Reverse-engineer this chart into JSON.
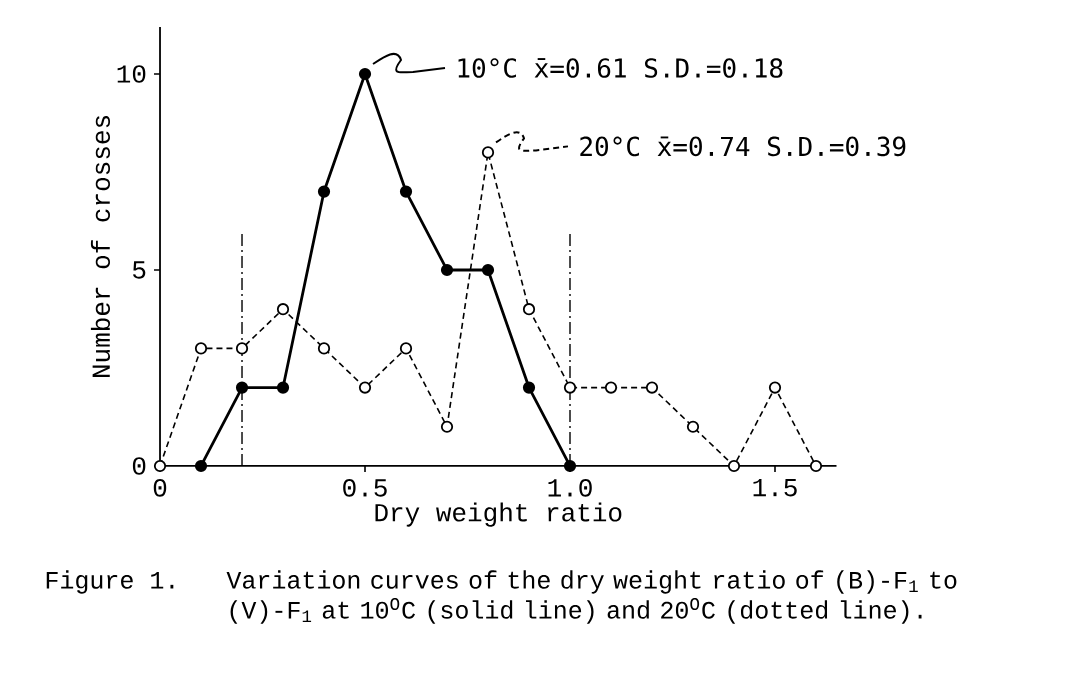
{
  "chart_data": {
    "type": "line",
    "xlabel": "Dry weight ratio",
    "ylabel": "Number of crosses",
    "series": [
      {
        "name": "10°C x̄=0.61 S.D.=0.18",
        "color": "#000000",
        "marker": "circle",
        "line_style": "solid",
        "x": [
          0.1,
          0.2,
          0.3,
          0.4,
          0.5,
          0.6,
          0.7,
          0.8,
          0.9,
          1.0
        ],
        "values": [
          0,
          2,
          2,
          7,
          10,
          7,
          5,
          5,
          2,
          0
        ]
      },
      {
        "name": "20°C x̄=0.74 S.D.=0.39",
        "color": "#000000",
        "marker": "circle",
        "line_style": "dashed",
        "x": [
          0,
          0.1,
          0.2,
          0.3,
          0.4,
          0.5,
          0.6,
          0.7,
          0.8,
          0.9,
          1.0,
          1.1,
          1.2,
          1.3,
          1.4,
          1.5,
          1.6
        ],
        "values": [
          0,
          3,
          3,
          4,
          3,
          2,
          3,
          1,
          8,
          4,
          2,
          2,
          2,
          1,
          0,
          2,
          0
        ]
      }
    ],
    "xlim": [
      0,
      1.65
    ],
    "ylim": [
      0,
      11.2
    ],
    "xticks": [
      0,
      0.5,
      {
        "value": 1.0,
        "label": "1.0"
      },
      1.5
    ],
    "yticks": [
      0,
      5,
      10
    ],
    "ref_lines": [
      {
        "axis": "x",
        "value": 0.2,
        "line_style": "dashdot"
      },
      {
        "axis": "x",
        "value": 1.0,
        "line_style": "dashdot"
      }
    ],
    "grid": false,
    "legend": "top right",
    "annotations": [
      "Figure 1.",
      "Variation curves of the dry weight ratio of (B)-F$_{1}$ to (V)-F$_{1}$ at 10$^{O}$C (solid line) and 20$^{O}$C (dotted line)."
    ]
  }
}
